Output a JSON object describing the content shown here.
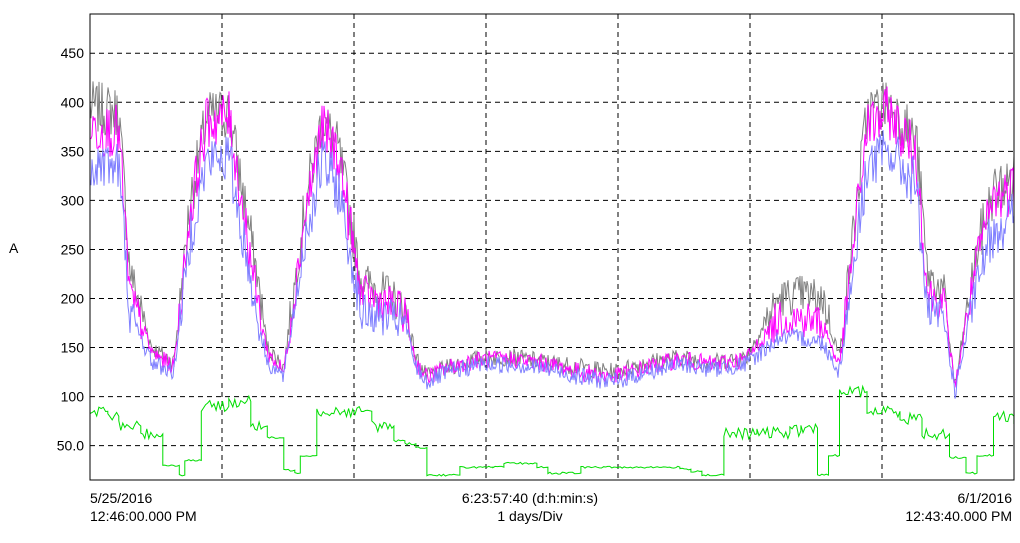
{
  "chart_data": {
    "type": "line",
    "ylabel": "A",
    "ylim": [
      15,
      490
    ],
    "yticks": [
      50,
      100,
      150,
      200,
      250,
      300,
      350,
      400,
      450
    ],
    "ytick_labels": [
      "50.0",
      "100",
      "150",
      "200",
      "250",
      "300",
      "350",
      "400",
      "450"
    ],
    "xlim": [
      "2016-05-25T12:46:00",
      "2016-06-01T12:43:40"
    ],
    "x_divisions": 7,
    "grid": true,
    "start_label": [
      "5/25/2016",
      "12:46:00.000 PM"
    ],
    "center_label": [
      "6:23:57:40 (d:h:min:s)",
      "1 days/Div"
    ],
    "end_label": [
      "6/1/2016",
      "12:43:40.000 PM"
    ],
    "colors": {
      "s1": "#808080",
      "s2": "#ff00ff",
      "s3": "#7f7fff",
      "s4": "#00dd00",
      "grid": "#000000"
    },
    "series": [
      {
        "color": "#808080",
        "x": [
          "2016-05-25T12:46",
          "2016-05-25T18:00",
          "2016-05-25T20:00",
          "2016-05-26T00:00",
          "2016-05-26T04:00",
          "2016-05-26T07:00",
          "2016-05-26T10:00",
          "2016-05-26T14:00",
          "2016-05-26T19:00",
          "2016-05-26T21:00",
          "2016-05-27T00:00",
          "2016-05-27T04:00",
          "2016-05-27T07:00",
          "2016-05-27T10:00",
          "2016-05-27T14:00",
          "2016-05-27T19:00",
          "2016-05-27T22:00",
          "2016-05-28T00:00",
          "2016-05-28T02:00",
          "2016-05-28T06:00",
          "2016-05-28T12:00",
          "2016-05-28T18:00",
          "2016-05-29T00:00",
          "2016-05-29T06:00",
          "2016-05-29T12:00",
          "2016-05-29T18:00",
          "2016-05-30T00:00",
          "2016-05-30T06:00",
          "2016-05-30T12:00",
          "2016-05-30T18:00",
          "2016-05-30T22:00",
          "2016-05-31T02:00",
          "2016-05-31T05:00",
          "2016-05-31T10:00",
          "2016-05-31T14:00",
          "2016-05-31T19:00",
          "2016-05-31T21:00",
          "2016-06-01T00:00",
          "2016-06-01T02:00",
          "2016-06-01T06:00",
          "2016-06-01T09:00",
          "2016-06-01T12:43"
        ],
        "y": [
          395,
          390,
          230,
          150,
          135,
          300,
          385,
          390,
          230,
          150,
          130,
          300,
          385,
          350,
          220,
          205,
          190,
          140,
          120,
          130,
          140,
          140,
          135,
          130,
          125,
          135,
          140,
          135,
          140,
          200,
          205,
          200,
          140,
          390,
          400,
          360,
          225,
          205,
          110,
          250,
          310,
          320
        ]
      },
      {
        "color": "#ff00ff",
        "x": [
          "2016-05-25T12:46",
          "2016-05-25T18:00",
          "2016-05-25T20:00",
          "2016-05-26T00:00",
          "2016-05-26T04:00",
          "2016-05-26T07:00",
          "2016-05-26T10:00",
          "2016-05-26T14:00",
          "2016-05-26T19:00",
          "2016-05-26T21:00",
          "2016-05-27T00:00",
          "2016-05-27T04:00",
          "2016-05-27T07:00",
          "2016-05-27T10:00",
          "2016-05-27T14:00",
          "2016-05-27T19:00",
          "2016-05-27T22:00",
          "2016-05-28T00:00",
          "2016-05-28T02:00",
          "2016-05-28T06:00",
          "2016-05-28T12:00",
          "2016-05-28T18:00",
          "2016-05-29T00:00",
          "2016-05-29T06:00",
          "2016-05-29T12:00",
          "2016-05-29T18:00",
          "2016-05-30T00:00",
          "2016-05-30T06:00",
          "2016-05-30T12:00",
          "2016-05-30T18:00",
          "2016-05-30T22:00",
          "2016-05-31T02:00",
          "2016-05-31T05:00",
          "2016-05-31T10:00",
          "2016-05-31T14:00",
          "2016-05-31T19:00",
          "2016-05-31T21:00",
          "2016-06-01T00:00",
          "2016-06-01T02:00",
          "2016-06-01T06:00",
          "2016-06-01T09:00",
          "2016-06-01T12:43"
        ],
        "y": [
          375,
          370,
          205,
          145,
          130,
          290,
          380,
          385,
          205,
          145,
          125,
          290,
          375,
          345,
          205,
          195,
          185,
          135,
          120,
          130,
          138,
          138,
          133,
          125,
          120,
          130,
          138,
          133,
          138,
          180,
          180,
          175,
          130,
          375,
          390,
          345,
          205,
          195,
          110,
          240,
          300,
          315
        ]
      },
      {
        "color": "#7f7fff",
        "x": [
          "2016-05-25T12:46",
          "2016-05-25T18:00",
          "2016-05-25T20:00",
          "2016-05-26T00:00",
          "2016-05-26T04:00",
          "2016-05-26T07:00",
          "2016-05-26T10:00",
          "2016-05-26T14:00",
          "2016-05-26T19:00",
          "2016-05-26T21:00",
          "2016-05-27T00:00",
          "2016-05-27T04:00",
          "2016-05-27T07:00",
          "2016-05-27T10:00",
          "2016-05-27T14:00",
          "2016-05-27T19:00",
          "2016-05-27T22:00",
          "2016-05-28T00:00",
          "2016-05-28T02:00",
          "2016-05-28T06:00",
          "2016-05-28T12:00",
          "2016-05-28T18:00",
          "2016-05-29T00:00",
          "2016-05-29T06:00",
          "2016-05-29T12:00",
          "2016-05-29T18:00",
          "2016-05-30T00:00",
          "2016-05-30T06:00",
          "2016-05-30T12:00",
          "2016-05-30T18:00",
          "2016-05-30T22:00",
          "2016-05-31T02:00",
          "2016-05-31T05:00",
          "2016-05-31T10:00",
          "2016-05-31T14:00",
          "2016-05-31T19:00",
          "2016-05-31T21:00",
          "2016-06-01T00:00",
          "2016-06-01T02:00",
          "2016-06-01T06:00",
          "2016-06-01T09:00",
          "2016-06-01T12:43"
        ],
        "y": [
          340,
          335,
          185,
          135,
          125,
          265,
          340,
          345,
          185,
          135,
          120,
          265,
          340,
          310,
          185,
          180,
          175,
          130,
          115,
          125,
          133,
          133,
          128,
          120,
          115,
          125,
          133,
          128,
          133,
          160,
          160,
          155,
          125,
          335,
          350,
          315,
          185,
          180,
          105,
          215,
          270,
          285
        ]
      },
      {
        "color": "#00dd00",
        "x": [
          "2016-05-25T12:46",
          "2016-05-25T16:00",
          "2016-05-25T18:00",
          "2016-05-25T22:00",
          "2016-05-26T02:00",
          "2016-05-26T05:00",
          "2016-05-26T06:00",
          "2016-05-26T09:00",
          "2016-05-26T14:00",
          "2016-05-26T18:00",
          "2016-05-26T21:00",
          "2016-05-27T00:00",
          "2016-05-27T02:00",
          "2016-05-27T03:00",
          "2016-05-27T06:00",
          "2016-05-27T11:00",
          "2016-05-27T16:00",
          "2016-05-27T20:00",
          "2016-05-27T22:00",
          "2016-05-28T00:00",
          "2016-05-28T02:00",
          "2016-05-28T08:00",
          "2016-05-28T14:00",
          "2016-05-28T16:00",
          "2016-05-28T22:00",
          "2016-05-29T00:00",
          "2016-05-29T06:00",
          "2016-05-29T12:00",
          "2016-05-29T18:00",
          "2016-05-30T00:00",
          "2016-05-30T02:00",
          "2016-05-30T04:00",
          "2016-05-30T08:00",
          "2016-05-30T14:00",
          "2016-05-30T20:00",
          "2016-05-30T22:00",
          "2016-05-31T01:00",
          "2016-05-31T03:00",
          "2016-05-31T05:00",
          "2016-05-31T10:00",
          "2016-05-31T16:00",
          "2016-05-31T20:00",
          "2016-06-01T01:00",
          "2016-06-01T04:00",
          "2016-06-01T06:00",
          "2016-06-01T09:00",
          "2016-06-01T12:43"
        ],
        "y": [
          85,
          80,
          70,
          62,
          30,
          20,
          35,
          90,
          95,
          70,
          58,
          25,
          22,
          40,
          85,
          85,
          70,
          55,
          52,
          48,
          20,
          28,
          28,
          32,
          28,
          22,
          28,
          28,
          28,
          26,
          24,
          20,
          62,
          63,
          65,
          68,
          20,
          40,
          105,
          85,
          78,
          62,
          38,
          22,
          40,
          80,
          70
        ]
      }
    ]
  }
}
